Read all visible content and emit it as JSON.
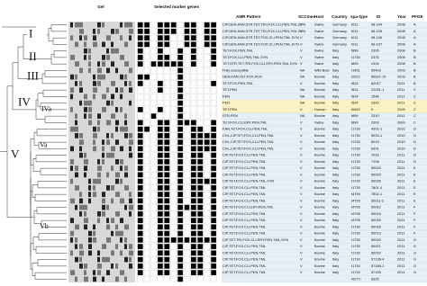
{
  "headers": {
    "gel": "Gel",
    "genes": "Selected marker genes",
    "amr": "AMR Pattern",
    "scc": "SCCmec",
    "host": "Host",
    "country": "Country",
    "spa": "spa-type",
    "id": "ID",
    "year": "Year",
    "pfge": "PFGE"
  },
  "clusters": [
    "I",
    "II",
    "III",
    "IV",
    "IVa",
    "V",
    "Va",
    "Vb"
  ],
  "rows": [
    {
      "amr": "CIP,GEN,KAN,STR,TET,TRI,FOX,CLI,PEN,TML,SYN",
      "scc": "V",
      "host": "Swine",
      "country": "Germany",
      "spa": "t011",
      "id": "08-104",
      "year": "2008",
      "pfge": "A",
      "genes": [
        1,
        1,
        0,
        1,
        1,
        1,
        0,
        1,
        1,
        0,
        1,
        1
      ]
    },
    {
      "amr": "CIP,GEN,KAN,STR,TET,TRI,FOX,CLI,PEN,TML,SYN",
      "scc": "V",
      "host": "Swine",
      "country": "Germany",
      "spa": "t011",
      "id": "08-105",
      "year": "2008",
      "pfge": "A",
      "genes": [
        1,
        1,
        0,
        1,
        1,
        1,
        0,
        1,
        1,
        0,
        1,
        1
      ]
    },
    {
      "amr": "CIP,GEN,KAN,STR,TET,FOX,CLI,PEN,TML,SYN",
      "scc": "V",
      "host": "Swine",
      "country": "Germany",
      "spa": "t011",
      "id": "08-106",
      "year": "2008",
      "pfge": "A",
      "genes": [
        1,
        1,
        0,
        1,
        1,
        0,
        0,
        1,
        1,
        0,
        1,
        1
      ]
    },
    {
      "amr": "CIP,GEN,KAN,STR,TET,FOX,CLI,PEN,TML,SYN",
      "scc": "V",
      "host": "Swine",
      "country": "Germany",
      "spa": "t011",
      "id": "08-107",
      "year": "2008",
      "pfge": "A",
      "genes": [
        1,
        1,
        0,
        1,
        1,
        0,
        0,
        1,
        1,
        0,
        1,
        1
      ]
    },
    {
      "amr": "TET,FOX,PEN,TML",
      "scc": "V",
      "host": "Swine",
      "country": "Italy",
      "spa": "t899",
      "id": "2395",
      "year": "2008",
      "pfge": "B",
      "genes": [
        1,
        0,
        0,
        1,
        0,
        0,
        1,
        0,
        1,
        0,
        0,
        1
      ]
    },
    {
      "amr": "TET,FOX,CLI,PEN,TML,SYN",
      "scc": "V",
      "host": "Swine",
      "country": "Italy",
      "spa": "t1730",
      "id": "2376",
      "year": "2008",
      "pfge": "B",
      "genes": [
        1,
        0,
        0,
        1,
        1,
        0,
        1,
        0,
        1,
        0,
        0,
        1
      ]
    },
    {
      "amr": "TET,STR,TET,TRI,FOX,CLI,ERY,PEN,TML,SYN",
      "scc": "V",
      "host": "Swine",
      "country": "Italy",
      "spa": "t899",
      "id": "2404",
      "year": "2008",
      "pfge": "B",
      "genes": [
        1,
        0,
        1,
        1,
        1,
        1,
        1,
        0,
        1,
        0,
        0,
        1
      ]
    },
    {
      "amr": "Fully susceptible",
      "scc": "NA",
      "host": "Wild Boar",
      "country": "Italy",
      "spa": "t1451",
      "id": "59403",
      "year": "2009",
      "pfge": "B",
      "genes": [
        0,
        0,
        0,
        0,
        0,
        0,
        1,
        0,
        0,
        0,
        0,
        0
      ]
    },
    {
      "amr": "GEN,KAN,TET,FOX,PEN",
      "scc": "NA",
      "host": "Bovine",
      "country": "Italy",
      "spa": "t2922",
      "id": "66621-10",
      "year": "2009",
      "pfge": "B",
      "genes": [
        1,
        1,
        0,
        0,
        0,
        0,
        1,
        0,
        0,
        0,
        0,
        0
      ]
    },
    {
      "amr": "TET,FOX,PEN,TML",
      "scc": "V",
      "host": "Bovine",
      "country": "Italy",
      "spa": "t524",
      "id": "62017",
      "year": "2011",
      "pfge": "B",
      "genes": [
        1,
        0,
        0,
        1,
        0,
        0,
        1,
        0,
        0,
        0,
        0,
        1
      ]
    },
    {
      "amr": "TET,PEN",
      "scc": "NA",
      "host": "Bovine",
      "country": "Italy",
      "spa": "t524",
      "id": "22091-1",
      "year": "2011",
      "pfge": "C",
      "genes": [
        0,
        0,
        0,
        1,
        0,
        0,
        1,
        0,
        0,
        0,
        0,
        0
      ]
    },
    {
      "amr": "PEN",
      "scc": "NA",
      "host": "Bovine",
      "country": "Italy",
      "spa": "t524",
      "id": "1546",
      "year": "2011",
      "pfge": "C",
      "genes": [
        0,
        0,
        0,
        0,
        0,
        0,
        1,
        0,
        0,
        0,
        0,
        0
      ]
    },
    {
      "amr": "PEN",
      "scc": "NA",
      "host": "Bovine",
      "country": "Italy",
      "spa": "t524",
      "id": "2300",
      "year": "2011",
      "pfge": "C",
      "genes": [
        0,
        0,
        0,
        0,
        0,
        0,
        1,
        0,
        0,
        0,
        0,
        0
      ],
      "highlight": true
    },
    {
      "amr": "TET,PEN",
      "scc": "V",
      "host": "Human",
      "country": "Italy",
      "spa": "t5452",
      "id": "9",
      "year": "2009",
      "pfge": "C",
      "genes": [
        1,
        0,
        0,
        1,
        0,
        0,
        1,
        0,
        0,
        0,
        0,
        0
      ],
      "highlight": true
    },
    {
      "amr": "STR,PEN",
      "scc": "NA",
      "host": "Bovine",
      "country": "Italy",
      "spa": "t899",
      "id": "2310",
      "year": "2011",
      "pfge": "C",
      "genes": [
        0,
        0,
        1,
        0,
        0,
        0,
        1,
        0,
        0,
        0,
        0,
        0
      ]
    },
    {
      "amr": "TET,FOX,CLI,ERY,PEN,TML",
      "scc": "V",
      "host": "Swine",
      "country": "Italy",
      "spa": "t899",
      "id": "2003",
      "year": "2009",
      "pfge": "C",
      "genes": [
        1,
        0,
        0,
        1,
        1,
        0,
        1,
        1,
        1,
        0,
        0,
        1
      ]
    },
    {
      "amr": "KAN,TET,FOX,CLI,PEN,TML",
      "scc": "V",
      "host": "Bovine",
      "country": "Italy",
      "spa": "t1730",
      "id": "4301-1",
      "year": "2010",
      "pfge": "D",
      "genes": [
        1,
        1,
        0,
        1,
        1,
        0,
        1,
        0,
        1,
        1,
        0,
        1
      ]
    },
    {
      "amr": "CHL,CIP,TET,FOX,CLI,PEN,TML",
      "scc": "V",
      "host": "Bovine",
      "country": "Italy",
      "spa": "t1730",
      "id": "5033-1",
      "year": "2010",
      "pfge": "D",
      "genes": [
        1,
        0,
        0,
        1,
        1,
        0,
        1,
        0,
        1,
        1,
        1,
        1
      ]
    },
    {
      "amr": "CHL,CIP,TET,FOX,CLI,PEN,TML",
      "scc": "V",
      "host": "Bovine",
      "country": "Italy",
      "spa": "t1730",
      "id": "6219",
      "year": "2010",
      "pfge": "D",
      "genes": [
        1,
        0,
        0,
        1,
        1,
        0,
        1,
        0,
        1,
        1,
        1,
        1
      ]
    },
    {
      "amr": "CHL,CIP,TET,FOX,CLI,PEN,TML",
      "scc": "V",
      "host": "Bovine",
      "country": "Italy",
      "spa": "t1730",
      "id": "6301",
      "year": "2010",
      "pfge": "D",
      "genes": [
        1,
        0,
        0,
        1,
        1,
        0,
        1,
        0,
        1,
        1,
        1,
        1
      ]
    },
    {
      "amr": "CIP,TET,FOX,CLI,PEN,TML",
      "scc": "V",
      "host": "Bovine",
      "country": "Italy",
      "spa": "t1730",
      "id": "7016",
      "year": "2011",
      "pfge": "D",
      "genes": [
        1,
        0,
        0,
        1,
        1,
        0,
        1,
        0,
        1,
        1,
        0,
        1
      ]
    },
    {
      "amr": "CIP,TET,FOX,CLI,PEN,TML",
      "scc": "V",
      "host": "Bovine",
      "country": "Italy",
      "spa": "t1730",
      "id": "7108",
      "year": "2011",
      "pfge": "D",
      "genes": [
        1,
        0,
        0,
        1,
        1,
        0,
        1,
        0,
        1,
        1,
        0,
        1
      ]
    },
    {
      "amr": "CIP,TET,FOX,CLI,PEN,TML",
      "scc": "V",
      "host": "Bovine",
      "country": "Italy",
      "spa": "t1730",
      "id": "50024",
      "year": "2011",
      "pfge": "E",
      "genes": [
        1,
        0,
        0,
        1,
        1,
        0,
        1,
        0,
        1,
        1,
        0,
        1
      ]
    },
    {
      "amr": "CIP,TET,FOX,CLI,PEN,TML",
      "scc": "V",
      "host": "Bovine",
      "country": "Italy",
      "spa": "t1730",
      "id": "50025",
      "year": "2011",
      "pfge": "E",
      "genes": [
        1,
        0,
        0,
        1,
        1,
        0,
        1,
        0,
        1,
        1,
        0,
        1
      ]
    },
    {
      "amr": "CIP,TET,FOX,CLI,PEN,TML,SYN",
      "scc": "V",
      "host": "Bovine",
      "country": "Italy",
      "spa": "t1730",
      "id": "50026",
      "year": "2011",
      "pfge": "E",
      "genes": [
        1,
        0,
        0,
        1,
        1,
        0,
        1,
        0,
        1,
        1,
        1,
        1
      ]
    },
    {
      "amr": "CIP,TET,FOX,CLI,PEN,TML",
      "scc": "V",
      "host": "Bovine",
      "country": "Italy",
      "spa": "t1730",
      "id": "7801-4",
      "year": "2011",
      "pfge": "E",
      "genes": [
        1,
        0,
        0,
        1,
        1,
        0,
        1,
        0,
        1,
        1,
        0,
        1
      ]
    },
    {
      "amr": "CIP,TET,FOX,CLI,PEN,TML",
      "scc": "V",
      "host": "Bovine",
      "country": "Italy",
      "spa": "t4795",
      "id": "7802-1",
      "year": "2011",
      "pfge": "E",
      "genes": [
        1,
        0,
        0,
        1,
        1,
        0,
        1,
        0,
        1,
        1,
        0,
        1
      ]
    },
    {
      "amr": "CIP,TET,FOX,CLI,PEN,TML",
      "scc": "V",
      "host": "Bovine",
      "country": "Italy",
      "spa": "t4795",
      "id": "50011-2",
      "year": "2011",
      "pfge": "E",
      "genes": [
        1,
        0,
        0,
        1,
        1,
        0,
        1,
        0,
        1,
        1,
        0,
        1
      ]
    },
    {
      "amr": "CIP,TET,FOX,CLI,ERY,PEN,TML",
      "scc": "V",
      "host": "Bovine",
      "country": "Italy",
      "spa": "t4795",
      "id": "50012",
      "year": "2011",
      "pfge": "F",
      "genes": [
        1,
        0,
        0,
        1,
        1,
        0,
        1,
        1,
        1,
        1,
        0,
        1
      ]
    },
    {
      "amr": "CIP,TET,FOX,CLI,PEN,TML",
      "scc": "V",
      "host": "Bovine",
      "country": "Italy",
      "spa": "t4795",
      "id": "50015",
      "year": "2011",
      "pfge": "F",
      "genes": [
        1,
        0,
        0,
        1,
        1,
        0,
        1,
        0,
        1,
        1,
        0,
        1
      ]
    },
    {
      "amr": "CIP,TET,FOX,CLI,PEN,TML",
      "scc": "V",
      "host": "Bovine",
      "country": "Italy",
      "spa": "t4795",
      "id": "50016",
      "year": "2011",
      "pfge": "F",
      "genes": [
        1,
        0,
        0,
        1,
        1,
        0,
        1,
        0,
        1,
        1,
        0,
        1
      ]
    },
    {
      "amr": "CIP,TET,FOX,CLI,PEN,TML",
      "scc": "V",
      "host": "Bovine",
      "country": "Italy",
      "spa": "t1730",
      "id": "50018",
      "year": "2011",
      "pfge": "F",
      "genes": [
        1,
        0,
        0,
        1,
        1,
        0,
        1,
        0,
        1,
        1,
        0,
        1
      ]
    },
    {
      "amr": "CIP,TET,FOX,CLI,PEN,TML",
      "scc": "V",
      "host": "Bovine",
      "country": "Italy",
      "spa": "t1730",
      "id": "50019",
      "year": "2011",
      "pfge": "F",
      "genes": [
        1,
        0,
        0,
        1,
        1,
        0,
        1,
        0,
        1,
        1,
        0,
        1
      ]
    },
    {
      "amr": "CIP,TET,TRI,FOX,CLI,ERY,PEN,TML,SYN",
      "scc": "V",
      "host": "Bovine",
      "country": "Italy",
      "spa": "t1730",
      "id": "50020",
      "year": "2011",
      "pfge": "G",
      "genes": [
        1,
        0,
        0,
        1,
        1,
        1,
        1,
        1,
        1,
        1,
        1,
        1
      ]
    },
    {
      "amr": "CIP,TET,FOX,CLI,PEN,TML",
      "scc": "V",
      "host": "Bovine",
      "country": "Italy",
      "spa": "t1730",
      "id": "50021",
      "year": "2011",
      "pfge": "G",
      "genes": [
        1,
        0,
        0,
        1,
        1,
        0,
        1,
        0,
        1,
        1,
        0,
        1
      ]
    },
    {
      "amr": "CIP,TET,FOX,CLI,PEN,TML",
      "scc": "V",
      "host": "Bovine",
      "country": "Italy",
      "spa": "t1730",
      "id": "50022",
      "year": "2011",
      "pfge": "G",
      "genes": [
        1,
        0,
        0,
        1,
        1,
        0,
        1,
        0,
        1,
        1,
        0,
        1
      ]
    },
    {
      "amr": "CIP,TET,FOX,CLI,PEN,TML",
      "scc": "V",
      "host": "Bovine",
      "country": "Italy",
      "spa": "t1730",
      "id": "57136-4",
      "year": "2011",
      "pfge": "G",
      "genes": [
        1,
        0,
        0,
        1,
        1,
        0,
        1,
        0,
        1,
        1,
        0,
        1
      ]
    },
    {
      "amr": "CIP,TET,FOX,CLI,PEN,TML",
      "scc": "V",
      "host": "Bovine",
      "country": "Italy",
      "spa": "t1730",
      "id": "57158-1",
      "year": "2011",
      "pfge": "G",
      "genes": [
        1,
        0,
        0,
        1,
        1,
        0,
        1,
        0,
        1,
        1,
        0,
        1
      ]
    },
    {
      "amr": "CIP,TET,FOX,CLI,PEN,TML",
      "scc": "V",
      "host": "Bovine",
      "country": "Italy",
      "spa": "t1730",
      "id": "57159",
      "year": "2011",
      "pfge": "G",
      "genes": [
        1,
        0,
        0,
        1,
        1,
        0,
        1,
        0,
        1,
        1,
        0,
        1
      ]
    },
    {
      "spa": "NCTC",
      "id": "8325",
      "genes": [
        0,
        0,
        0,
        0,
        0,
        0,
        1,
        0,
        0,
        0,
        0,
        0
      ]
    }
  ]
}
